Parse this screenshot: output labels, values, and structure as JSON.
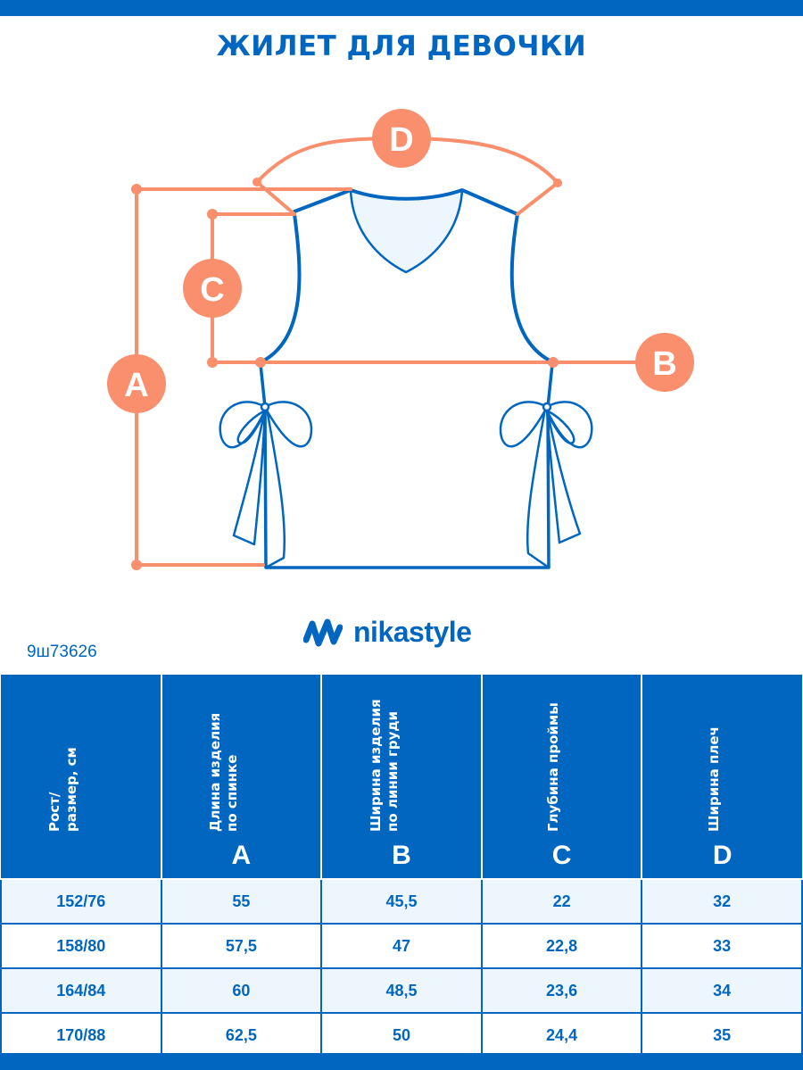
{
  "title": "ЖИЛЕТ ДЛЯ ДЕВОЧКИ",
  "diagram": {
    "labels": [
      "A",
      "B",
      "C",
      "D"
    ],
    "colors": {
      "measure": "#f98f6d",
      "outline": "#0066c0",
      "collar_fill": "#eef6fd"
    }
  },
  "brand": {
    "name": "nikastyle",
    "icon": "nikastyle-logo-icon"
  },
  "article": "9ш73626",
  "colors": {
    "primary": "#0066c0",
    "row_alt": "#eef6fd"
  },
  "table": {
    "headers": [
      {
        "line1": "Рост/",
        "line2": "размер, см",
        "letter": ""
      },
      {
        "line1": "Длина изделия",
        "line2": "по спинке",
        "letter": "A"
      },
      {
        "line1": "Ширина изделия",
        "line2": "по линии груди",
        "letter": "B"
      },
      {
        "line1": "Глубина проймы",
        "line2": "",
        "letter": "C"
      },
      {
        "line1": "Ширина плеч",
        "line2": "",
        "letter": "D"
      }
    ],
    "rows": [
      [
        "152/76",
        "55",
        "45,5",
        "22",
        "32"
      ],
      [
        "158/80",
        "57,5",
        "47",
        "22,8",
        "33"
      ],
      [
        "164/84",
        "60",
        "48,5",
        "23,6",
        "34"
      ],
      [
        "170/88",
        "62,5",
        "50",
        "24,4",
        "35"
      ]
    ]
  }
}
